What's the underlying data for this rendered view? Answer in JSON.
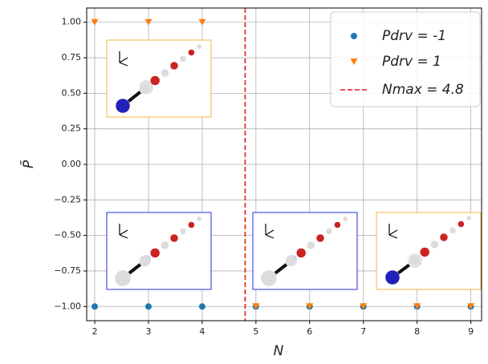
{
  "chart_data": {
    "type": "scatter",
    "x_label": "N",
    "y_label": "P̄",
    "xlim": [
      1.85,
      9.2
    ],
    "ylim": [
      -1.1,
      1.1
    ],
    "xticks": [
      2,
      3,
      4,
      5,
      6,
      7,
      8,
      9
    ],
    "yticks": [
      {
        "value": -1,
        "label": "−1.00"
      },
      {
        "value": -0.75,
        "label": "−0.75"
      },
      {
        "value": -0.5,
        "label": "−0.50"
      },
      {
        "value": -0.25,
        "label": "−0.25"
      },
      {
        "value": 0,
        "label": "0.00"
      },
      {
        "value": 0.25,
        "label": "0.25"
      },
      {
        "value": 0.5,
        "label": "0.50"
      },
      {
        "value": 0.75,
        "label": "0.75"
      },
      {
        "value": 1,
        "label": "1.00"
      }
    ],
    "grid": true,
    "legend": "upper right",
    "series": [
      {
        "name": "Pdrv = -1",
        "color": "#1f77b4",
        "marker": "circle",
        "x": [
          2,
          3,
          4,
          5,
          6,
          7,
          8,
          9
        ],
        "values": [
          -1,
          -1,
          -1,
          -1,
          -1,
          -1,
          -1,
          -1
        ]
      },
      {
        "name": "Pdrv = 1",
        "color": "#ff7f0e",
        "marker": "triangle",
        "x": [
          2,
          3,
          4,
          5,
          6,
          7,
          8,
          9
        ],
        "values": [
          1,
          1,
          1,
          -1,
          -1,
          -1,
          -1,
          -1
        ]
      }
    ],
    "vline": {
      "x": 4.8,
      "label": "Nmax = 4.8",
      "color": "#e41a1c"
    }
  }
}
